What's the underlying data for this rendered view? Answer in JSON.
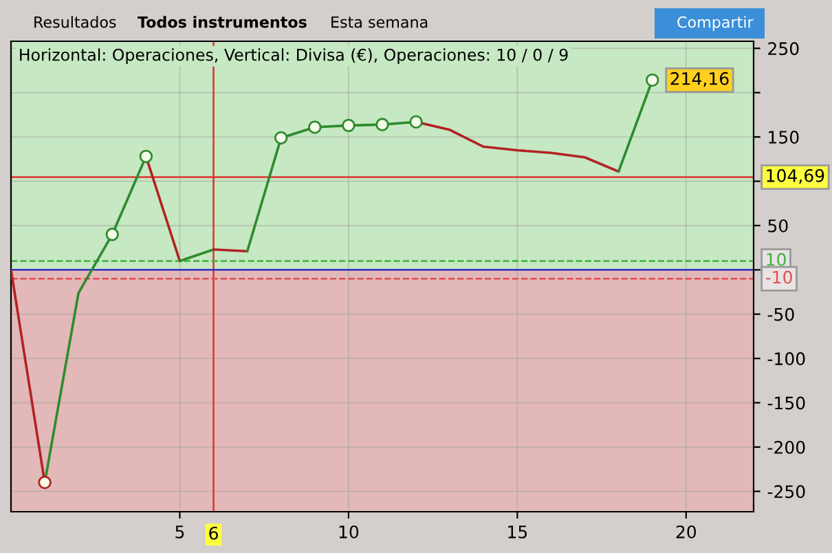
{
  "chart_data": {
    "type": "line",
    "title": "Horizontal: Operaciones, Vertical: Divisa (€), Operaciones: 10 / 0 / 9",
    "annotations": [
      "Resultados",
      "Todos instrumentos",
      "Esta semana",
      "Compartir"
    ],
    "series": [
      {
        "color": "#b22222",
        "x": [
          0,
          1
        ],
        "values": [
          0,
          -240
        ]
      },
      {
        "color": "#2e8b2e",
        "x": [
          1,
          2,
          3,
          4
        ],
        "values": [
          -240,
          -26,
          40,
          128
        ]
      },
      {
        "color": "#b22222",
        "x": [
          4,
          5
        ],
        "values": [
          128,
          10
        ]
      },
      {
        "color": "#2e8b2e",
        "x": [
          5,
          6
        ],
        "values": [
          10,
          23
        ]
      },
      {
        "color": "#b22222",
        "x": [
          6,
          7
        ],
        "values": [
          23,
          21
        ]
      },
      {
        "color": "#2e8b2e",
        "x": [
          7,
          8,
          9,
          10,
          11,
          12
        ],
        "values": [
          21,
          149,
          161,
          163,
          164,
          167
        ]
      },
      {
        "color": "#b22222",
        "x": [
          12,
          13,
          14,
          15,
          16,
          17,
          18
        ],
        "values": [
          167,
          158,
          139,
          135,
          132,
          127,
          111
        ]
      },
      {
        "color": "#2e8b2e",
        "x": [
          18,
          19
        ],
        "values": [
          111,
          214.16
        ],
        "value_labels": [
          null,
          "214,16"
        ]
      },
      {
        "type": "scatter",
        "marker": "circle",
        "x": [
          1,
          3,
          4,
          8,
          9,
          10,
          11,
          12,
          19
        ],
        "colors": [
          "#b22222",
          "#2e8b2e",
          "#2e8b2e",
          "#2e8b2e",
          "#2e8b2e",
          "#2e8b2e",
          "#2e8b2e",
          "#2e8b2e",
          "#2e8b2e"
        ],
        "values": [
          -240,
          40,
          128,
          149,
          161,
          163,
          164,
          167,
          214.16
        ]
      }
    ],
    "xlim": [
      0,
      22
    ],
    "xticks": [
      5,
      10,
      15,
      20
    ],
    "ylim": [
      -273,
      258
    ],
    "yticks": [
      250,
      {
        "value": 200,
        "label": null
      },
      150,
      {
        "value": 100,
        "label": null
      },
      50,
      {
        "value": 0,
        "label": null
      },
      -50,
      -100,
      -150,
      -200,
      -250
    ],
    "grid": true,
    "ref_lines": [
      {
        "axis": "y",
        "value": 104.69,
        "label": "104,69",
        "color": "#e03030",
        "line_style": "solid"
      },
      {
        "axis": "x",
        "value": 6,
        "label": "6",
        "color": "#e03030",
        "line_style": "solid"
      },
      {
        "axis": "y",
        "value": 10,
        "label": "10",
        "color": "#40b040",
        "line_style": "dashed"
      },
      {
        "axis": "y",
        "value": -10,
        "label": "-10",
        "color": "#e05050",
        "line_style": "dashed"
      },
      {
        "axis": "y",
        "value": 0,
        "color": "#3030c0",
        "line_style": "solid"
      }
    ],
    "bands": [
      {
        "axis": "y",
        "from": 0,
        "to": 258,
        "color": "#c6e8c2"
      },
      {
        "axis": "y",
        "from": -273,
        "to": 0,
        "color": "#e2b8b8"
      }
    ]
  }
}
